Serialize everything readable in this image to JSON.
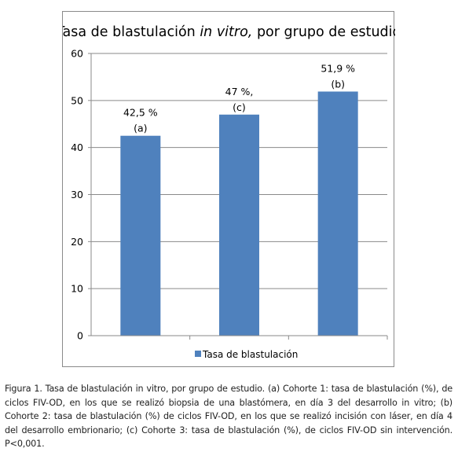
{
  "chart_data": {
    "type": "bar",
    "title_parts": [
      "Tasa de blastulación ",
      "in vitro,",
      " por grupo de estudio"
    ],
    "categories": [
      "",
      "",
      ""
    ],
    "series": [
      {
        "name": "Tasa de blastulación",
        "values": [
          42.5,
          47,
          51.9
        ],
        "color": "#4f81bd"
      }
    ],
    "data_labels": [
      [
        "42,5 %",
        "(a)"
      ],
      [
        "47 %,",
        "(c)"
      ],
      [
        "51,9 %",
        "(b)"
      ]
    ],
    "yticks": [
      "0",
      "10",
      "20",
      "30",
      "40",
      "50",
      "60"
    ],
    "ylim": [
      0,
      60
    ],
    "xlabel": "",
    "ylabel": "",
    "grid": true,
    "legend": "bottom"
  },
  "caption": "Figura 1. Tasa de blastulación in vitro, por grupo de estudio. (a) Cohorte 1: tasa de blastulación (%), de ciclos FIV-OD, en los que se realizó biopsia de una blastómera, en día 3 del desarrollo in vitro; (b) Cohorte 2: tasa de blastulación (%) de ciclos FIV-OD, en los que se realizó incisión con láser, en día 4 del desarrollo embrionario; (c) Cohorte 3: tasa de blastulación (%), de ciclos FIV-OD sin intervención. P<0,001."
}
